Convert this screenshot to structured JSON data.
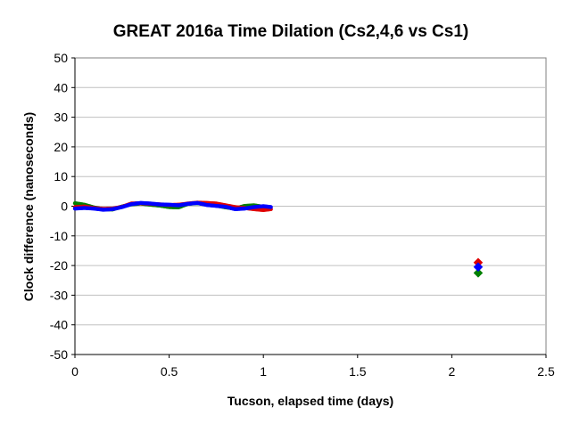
{
  "chart_data": {
    "type": "scatter",
    "title": "GREAT 2016a Time Dilation (Cs2,4,6 vs Cs1)",
    "xlabel": "Tucson, elapsed time (days)",
    "ylabel": "Clock difference (nanoseconds)",
    "xlim": [
      0,
      2.5
    ],
    "ylim": [
      -50,
      50
    ],
    "xticks": [
      0,
      0.5,
      1,
      1.5,
      2,
      2.5
    ],
    "xtick_labels": [
      "0",
      "0.5",
      "1",
      "1.5",
      "2",
      "2.5"
    ],
    "yticks": [
      -50,
      -40,
      -30,
      -20,
      -10,
      0,
      10,
      20,
      30,
      40,
      50
    ],
    "ytick_labels": [
      "-50",
      "-40",
      "-30",
      "-20",
      "-10",
      "0",
      "10",
      "20",
      "30",
      "40",
      "50"
    ],
    "grid": "horizontal",
    "legend": "none",
    "series": [
      {
        "color": "#e00000",
        "x": [
          0.0,
          0.05,
          0.1,
          0.15,
          0.2,
          0.25,
          0.3,
          0.35,
          0.4,
          0.45,
          0.5,
          0.55,
          0.6,
          0.65,
          0.7,
          0.75,
          0.8,
          0.85,
          0.9,
          0.95,
          1.0,
          1.04
        ],
        "y": [
          -0.3,
          -0.1,
          -0.6,
          -0.9,
          -0.8,
          -0.2,
          0.9,
          1.0,
          0.8,
          0.6,
          0.4,
          0.5,
          0.9,
          1.2,
          1.1,
          0.9,
          0.3,
          -0.3,
          -0.6,
          -1.0,
          -1.3,
          -1.0
        ],
        "markers": {
          "x": [
            2.14
          ],
          "y": [
            -19.0
          ]
        }
      },
      {
        "color": "#008000",
        "x": [
          0.0,
          0.05,
          0.1,
          0.15,
          0.2,
          0.25,
          0.3,
          0.35,
          0.4,
          0.45,
          0.5,
          0.55,
          0.6,
          0.65,
          0.7,
          0.75,
          0.8,
          0.85,
          0.9,
          0.95,
          1.0
        ],
        "y": [
          1.0,
          0.5,
          -0.4,
          -1.0,
          -1.1,
          -0.1,
          0.6,
          0.9,
          0.5,
          0.2,
          -0.3,
          -0.4,
          0.8,
          1.0,
          0.6,
          0.2,
          -0.4,
          -0.8,
          0.1,
          0.3,
          -0.2
        ],
        "markers": {
          "x": [
            2.14
          ],
          "y": [
            -22.5
          ]
        }
      },
      {
        "color": "#0000ff",
        "x": [
          0.0,
          0.05,
          0.1,
          0.15,
          0.2,
          0.25,
          0.3,
          0.35,
          0.4,
          0.45,
          0.5,
          0.55,
          0.6,
          0.65,
          0.7,
          0.75,
          0.8,
          0.85,
          0.9,
          0.95,
          1.0,
          1.04
        ],
        "y": [
          -0.8,
          -0.6,
          -0.8,
          -1.2,
          -1.0,
          -0.3,
          0.7,
          1.1,
          0.9,
          0.6,
          0.5,
          0.3,
          0.8,
          1.1,
          0.4,
          0.1,
          -0.2,
          -1.0,
          -0.8,
          -0.3,
          0.0,
          -0.3
        ],
        "markers": {
          "x": [
            2.14
          ],
          "y": [
            -20.5
          ]
        }
      }
    ]
  }
}
